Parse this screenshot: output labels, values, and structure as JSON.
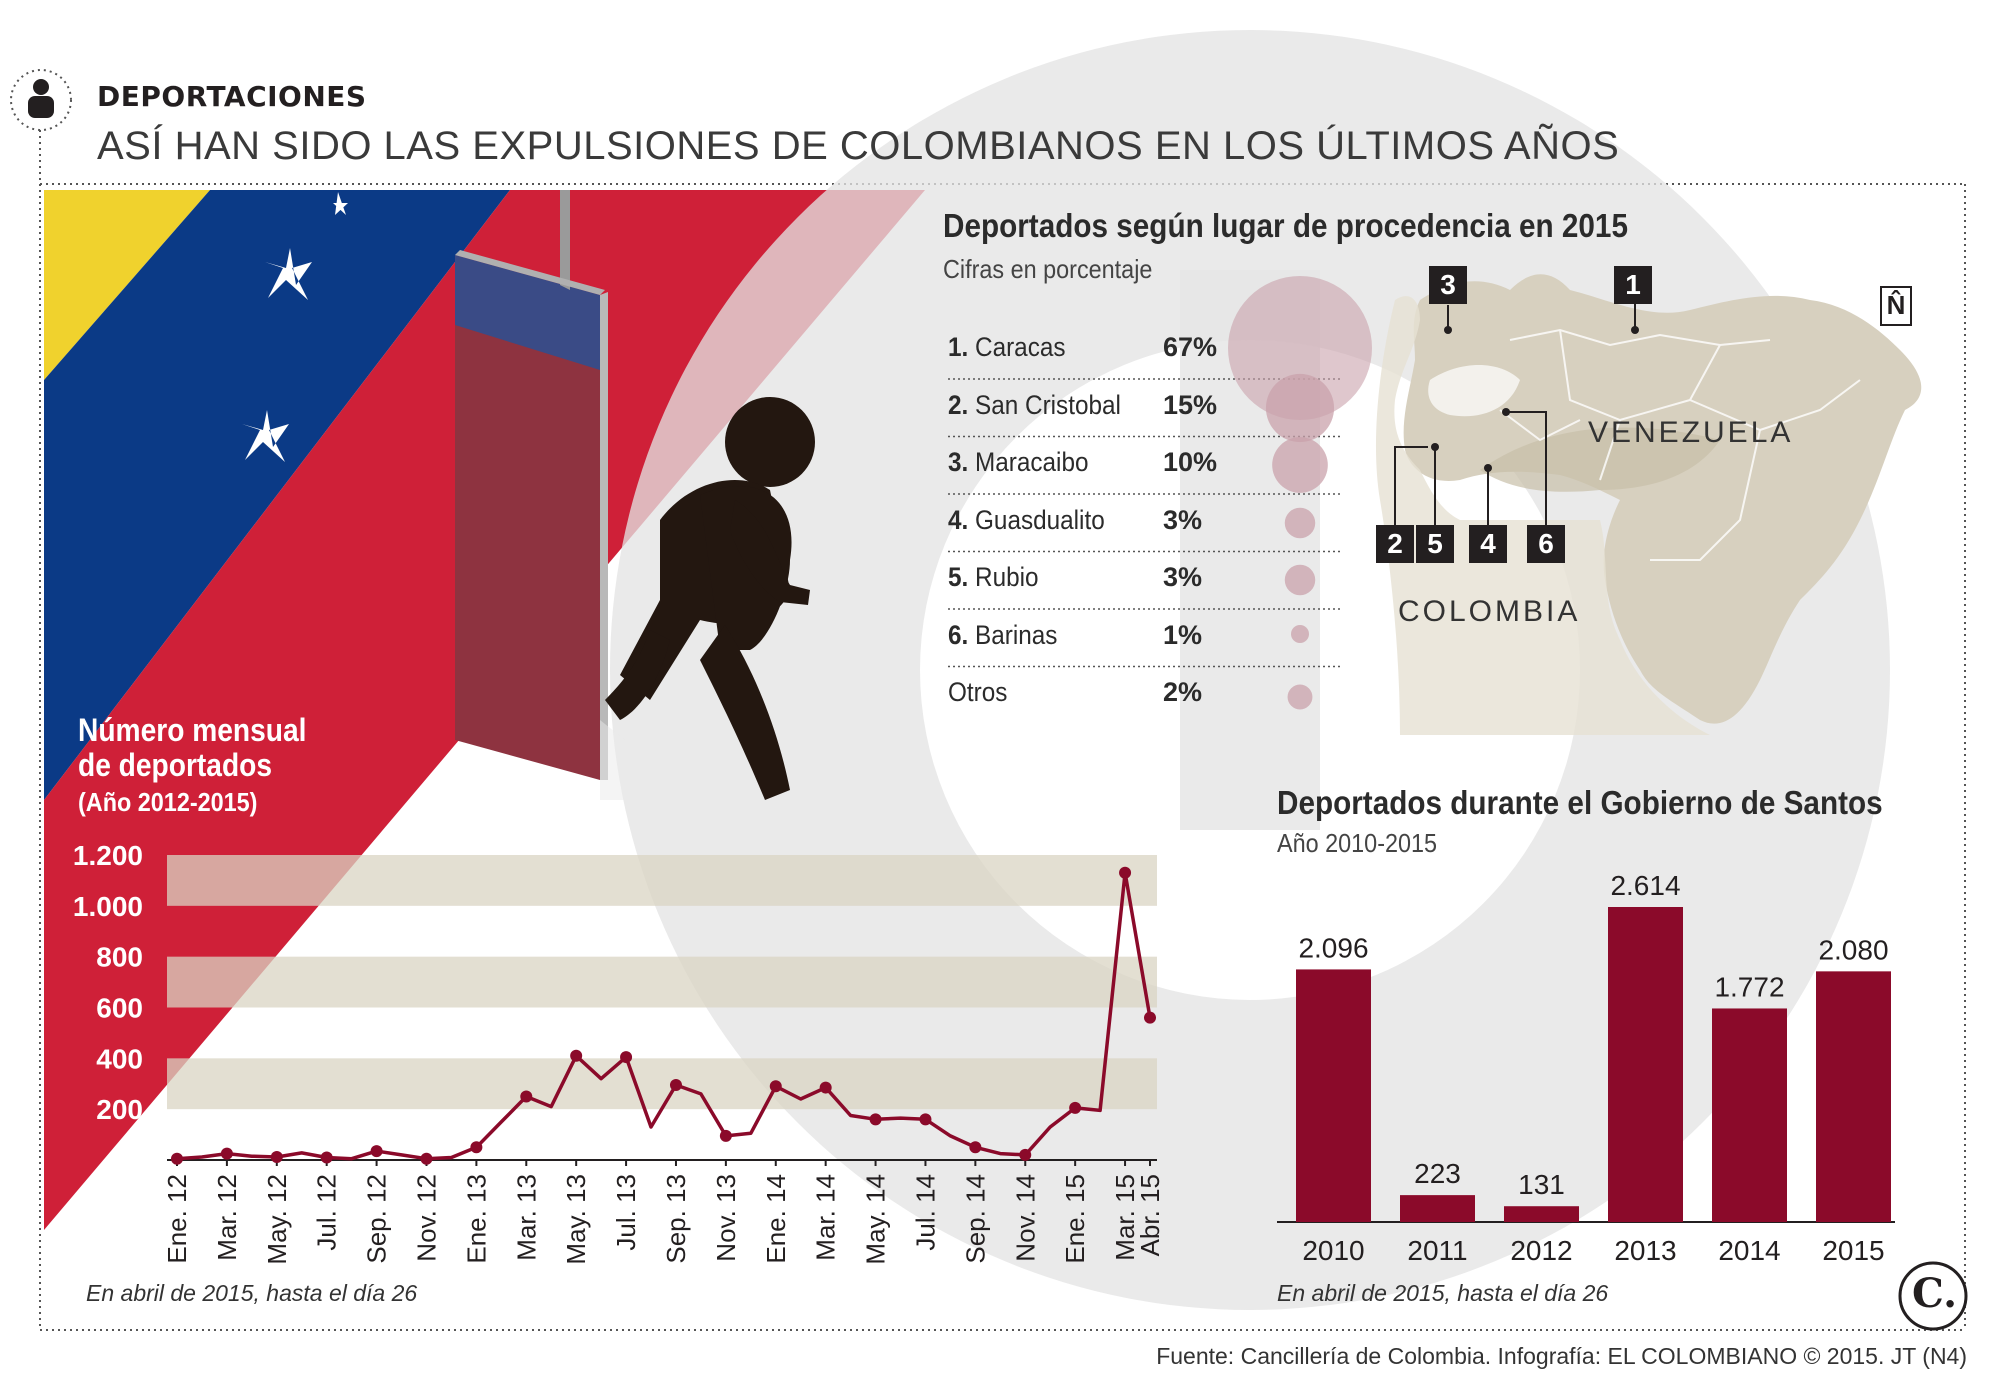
{
  "header": {
    "kicker": "DEPORTACIONES",
    "headline": "ASÍ HAN SIDO LAS EXPULSIONES DE COLOMBIANOS EN LOS ÚLTIMOS AÑOS",
    "icon": "person-icon"
  },
  "colors": {
    "accent": "#8b0a2a",
    "bubble": "#c9a2ab",
    "band": "#d9d4c3",
    "flag_yellow": "#f0d22d",
    "flag_blue": "#0b3a86",
    "flag_red": "#cf2038",
    "map_land": "#d7d0bf"
  },
  "origin": {
    "title": "Deportados según lugar de procedencia en 2015",
    "subtitle": "Cifras en porcentaje",
    "rows": [
      {
        "num": "1.",
        "name": "Caracas",
        "pct": "67%",
        "value": 67
      },
      {
        "num": "2.",
        "name": "San Cristobal",
        "pct": "15%",
        "value": 15
      },
      {
        "num": "3.",
        "name": "Maracaibo",
        "pct": "10%",
        "value": 10
      },
      {
        "num": "4.",
        "name": "Guasdualito",
        "pct": "3%",
        "value": 3
      },
      {
        "num": "5.",
        "name": "Rubio",
        "pct": "3%",
        "value": 3
      },
      {
        "num": "6.",
        "name": "Barinas",
        "pct": "1%",
        "value": 1
      },
      {
        "num": "",
        "name": "Otros",
        "pct": "2%",
        "value": 2
      }
    ]
  },
  "map": {
    "country_1": "VENEZUELA",
    "country_2": "COLOMBIA",
    "north": "N̂",
    "badges": [
      "1",
      "2",
      "3",
      "4",
      "5",
      "6"
    ]
  },
  "line_chart": {
    "title_1": "Número mensual",
    "title_2": "de deportados",
    "subtitle": "(Año 2012-2015)",
    "note": "En abril de 2015, hasta el día 26"
  },
  "bar_chart": {
    "title": "Deportados durante el Gobierno de Santos",
    "subtitle": "Año 2010-2015",
    "note": "En abril de 2015, hasta el día 26"
  },
  "chart_data": [
    {
      "type": "line",
      "title": "Número mensual de deportados",
      "subtitle": "(Año 2012-2015)",
      "ylim": [
        0,
        1200
      ],
      "yticks": [
        "1.200",
        "1.000",
        "800",
        "600",
        "400",
        "200"
      ],
      "ytick_values": [
        1200,
        1000,
        800,
        600,
        400,
        200
      ],
      "xtick_labels": [
        "Ene. 12",
        "Mar. 12",
        "May. 12",
        "Jul. 12",
        "Sep. 12",
        "Nov. 12",
        "Ene. 13",
        "Mar. 13",
        "May. 13",
        "Jul. 13",
        "Sep. 13",
        "Nov. 13",
        "Ene. 14",
        "Mar. 14",
        "May. 14",
        "Jul. 14",
        "Sep. 14",
        "Nov. 14",
        "Ene. 15",
        "Mar. 15",
        "Abr. 15"
      ],
      "x": [
        "Ene. 12",
        "Feb. 12",
        "Mar. 12",
        "Abr. 12",
        "May. 12",
        "Jun. 12",
        "Jul. 12",
        "Ago. 12",
        "Sep. 12",
        "Oct. 12",
        "Nov. 12",
        "Dic. 12",
        "Ene. 13",
        "Feb. 13",
        "Mar. 13",
        "Abr. 13",
        "May. 13",
        "Jun. 13",
        "Jul. 13",
        "Ago. 13",
        "Sep. 13",
        "Oct. 13",
        "Nov. 13",
        "Dic. 13",
        "Ene. 14",
        "Feb. 14",
        "Mar. 14",
        "Abr. 14",
        "May. 14",
        "Jun. 14",
        "Jul. 14",
        "Ago. 14",
        "Sep. 14",
        "Oct. 14",
        "Nov. 14",
        "Dic. 14",
        "Ene. 15",
        "Feb. 15",
        "Mar. 15",
        "Abr. 15"
      ],
      "values": [
        5,
        12,
        25,
        15,
        12,
        28,
        10,
        5,
        35,
        20,
        5,
        10,
        50,
        150,
        250,
        210,
        410,
        320,
        405,
        130,
        295,
        260,
        95,
        105,
        290,
        240,
        285,
        175,
        160,
        165,
        160,
        95,
        50,
        25,
        20,
        130,
        205,
        195,
        1130,
        560
      ]
    },
    {
      "type": "bar",
      "title": "Deportados durante el Gobierno de Santos",
      "subtitle": "Año 2010-2015",
      "categories": [
        "2010",
        "2011",
        "2012",
        "2013",
        "2014",
        "2015"
      ],
      "values": [
        2096,
        223,
        131,
        2614,
        1772,
        2080
      ],
      "value_labels": [
        "2.096",
        "223",
        "131",
        "2.614",
        "1.772",
        "2.080"
      ],
      "ylim": [
        0,
        2614
      ]
    }
  ],
  "source": "Fuente: Cancillería de Colombia. Infografía: EL COLOMBIANO © 2015. JT (N4)",
  "brand": "C."
}
